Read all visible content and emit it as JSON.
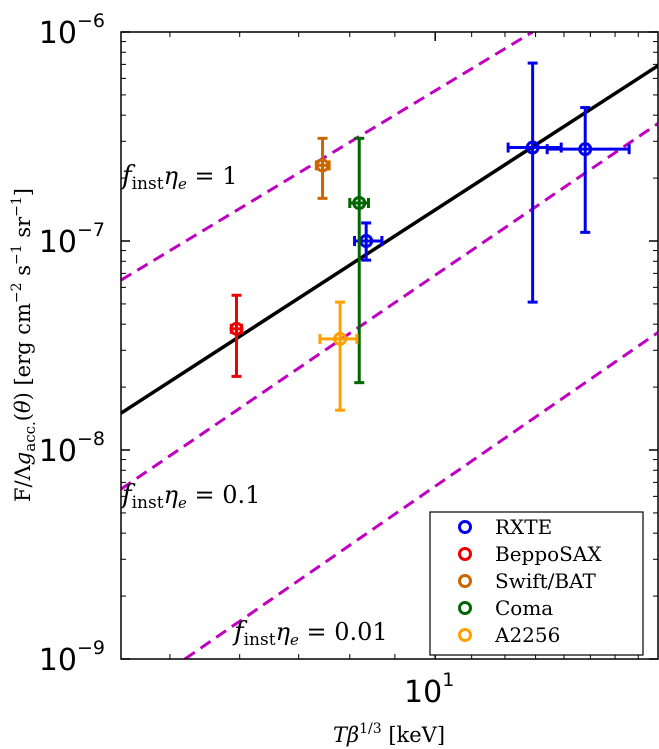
{
  "chart_data": {
    "type": "scatter",
    "title": "",
    "xlabel": "Tβ^{1/3} [keV]",
    "ylabel": "F/Λg_acc.(θ) [erg cm^{-2} s^{-1} sr^{-1}]",
    "xscale": "log",
    "yscale": "log",
    "xlim": [
      4.4,
      17.9
    ],
    "ylim": [
      1e-09,
      1e-06
    ],
    "x_ticks": [
      {
        "value": 10,
        "mantissa": "10",
        "exponent": "1"
      }
    ],
    "y_ticks": [
      {
        "value": 1e-09,
        "mantissa": "10",
        "exponent": "−9"
      },
      {
        "value": 1e-08,
        "mantissa": "10",
        "exponent": "−8"
      },
      {
        "value": 1e-07,
        "mantissa": "10",
        "exponent": "−7"
      },
      {
        "value": 1e-06,
        "mantissa": "10",
        "exponent": "−6"
      }
    ],
    "grid": false,
    "legend_position": "bottom-right",
    "fit_line": {
      "x": [
        4.4,
        17.9
      ],
      "y": [
        1.5e-08,
        6.9e-07
      ],
      "color": "#000000"
    },
    "reference_lines": [
      {
        "label": "f_inst η_e = 1",
        "x": [
          4.4,
          12.9
        ],
        "y": [
          6.5e-08,
          1e-06
        ],
        "color": "#c000c0"
      },
      {
        "label": "f_inst η_e = 0.1",
        "x": [
          4.4,
          17.9
        ],
        "y": [
          6.5e-09,
          3.65e-07
        ],
        "color": "#c000c0"
      },
      {
        "label": "f_inst η_e = 0.01",
        "x": [
          5.2,
          17.9
        ],
        "y": [
          1e-09,
          3.65e-08
        ],
        "color": "#c000c0"
      }
    ],
    "annotations": [
      {
        "line": 0,
        "main": "f",
        "sub": "inst",
        "eta": "η",
        "eta_sub": "e",
        "rest": " = 1"
      },
      {
        "line": 1,
        "main": "f",
        "sub": "inst",
        "eta": "η",
        "eta_sub": "e",
        "rest": " = 0.1"
      },
      {
        "line": 2,
        "main": "f",
        "sub": "inst",
        "eta": "η",
        "eta_sub": "e",
        "rest": " = 0.01"
      }
    ],
    "series": [
      {
        "name": "RXTE",
        "color": "#0000ee",
        "points": [
          {
            "x": 8.35,
            "y": 1e-07,
            "xerr": [
              8.1,
              8.7
            ],
            "yerr": [
              8.1e-08,
              1.22e-07
            ]
          },
          {
            "x": 12.9,
            "y": 2.8e-07,
            "xerr": [
              12.1,
              13.9
            ],
            "yerr": [
              5.1e-08,
              7.1e-07
            ]
          },
          {
            "x": 14.8,
            "y": 2.75e-07,
            "xerr": [
              13.4,
              16.6
            ],
            "yerr": [
              1.1e-07,
              4.35e-07
            ]
          }
        ]
      },
      {
        "name": "BeppoSAX",
        "color": "#ee0000",
        "points": [
          {
            "x": 5.95,
            "y": 3.8e-08,
            "xerr": [
              5.87,
              6.03
            ],
            "yerr": [
              2.25e-08,
              5.5e-08
            ]
          }
        ]
      },
      {
        "name": "Swift/BAT",
        "color": "#cc6600",
        "points": [
          {
            "x": 7.45,
            "y": 2.3e-07,
            "xerr": [
              7.33,
              7.58
            ],
            "yerr": [
              1.6e-07,
              3.1e-07
            ]
          }
        ]
      },
      {
        "name": "Coma",
        "color": "#006600",
        "points": [
          {
            "x": 8.2,
            "y": 1.52e-07,
            "xerr": [
              8.0,
              8.4
            ],
            "yerr": [
              2.1e-08,
              3.1e-07
            ]
          }
        ]
      },
      {
        "name": "A2256",
        "color": "#ffa000",
        "points": [
          {
            "x": 7.8,
            "y": 3.4e-08,
            "xerr": [
              7.4,
              8.15
            ],
            "yerr": [
              1.55e-08,
              5.1e-08
            ]
          }
        ]
      }
    ]
  }
}
